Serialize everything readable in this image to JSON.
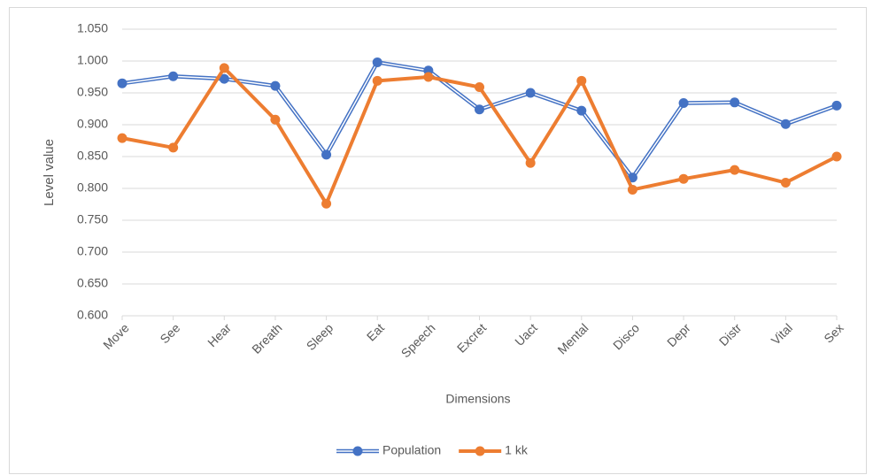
{
  "chart_data": {
    "type": "line",
    "x_label": "Dimensions",
    "y_label": "Level value",
    "categories": [
      "Move",
      "See",
      "Hear",
      "Breath",
      "Sleep",
      "Eat",
      "Speech",
      "Excret",
      "Uact",
      "Mental",
      "Disco",
      "Depr",
      "Distr",
      "Vital",
      "Sex"
    ],
    "series": [
      {
        "name": "Population",
        "color": "#4472c4",
        "style": "double",
        "values": [
          0.965,
          0.976,
          0.972,
          0.961,
          0.853,
          0.998,
          0.985,
          0.924,
          0.95,
          0.922,
          0.817,
          0.934,
          0.935,
          0.901,
          0.93
        ]
      },
      {
        "name": "1 kk",
        "color": "#ed7d31",
        "style": "solid",
        "values": [
          0.879,
          0.864,
          0.989,
          0.908,
          0.776,
          0.969,
          0.975,
          0.959,
          0.84,
          0.969,
          0.798,
          0.815,
          0.829,
          0.809,
          0.85
        ]
      }
    ],
    "ylim": [
      0.6,
      1.05
    ],
    "yticks": [
      {
        "value": 0.6,
        "label": "0.600"
      },
      {
        "value": 0.65,
        "label": "0.650"
      },
      {
        "value": 0.7,
        "label": "0.700"
      },
      {
        "value": 0.75,
        "label": "0.750"
      },
      {
        "value": 0.8,
        "label": "0.800"
      },
      {
        "value": 0.85,
        "label": "0.850"
      },
      {
        "value": 0.9,
        "label": "0.900"
      },
      {
        "value": 0.95,
        "label": "0.950"
      },
      {
        "value": 1.0,
        "label": "1.000"
      },
      {
        "value": 1.05,
        "label": "1.050"
      }
    ],
    "grid": true,
    "legend": "bottom"
  }
}
